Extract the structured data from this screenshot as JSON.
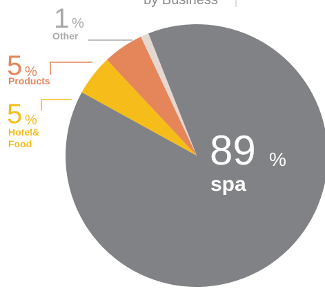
{
  "chart_data": {
    "type": "pie",
    "title": "by Business",
    "categories": [
      "spa",
      "Hotel&\nFood",
      "Products",
      "Other"
    ],
    "values": [
      89,
      5,
      5,
      1
    ],
    "unit": "%",
    "colors": [
      "#818285",
      "#f6bd1a",
      "#e5855a",
      "#e4d8d0"
    ],
    "label_colors": [
      "#ffffff",
      "#f6bd1a",
      "#e5855a",
      "#a8a8a8"
    ]
  }
}
